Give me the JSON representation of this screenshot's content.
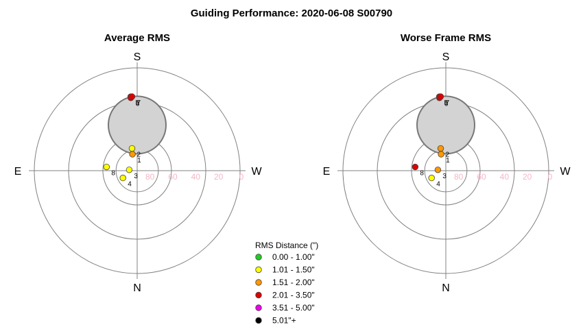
{
  "title": "Guiding Performance: 2020-06-08 S00790",
  "colors": {
    "background": "#ffffff",
    "ring": "#808080",
    "altitude_label": "#f4b6c6",
    "moon_fill": "#d3d3d3",
    "moon_stroke": "#777777",
    "text": "#000000",
    "point_stroke": "#444444"
  },
  "chart_data": [
    {
      "type": "scatter",
      "projection": "polar-sky",
      "title": "Average RMS",
      "directions": {
        "top": "S",
        "bottom": "N",
        "left": "E",
        "right": "W"
      },
      "altitude_ticks": [
        "80",
        "60",
        "40",
        "20",
        "0"
      ],
      "moon": {
        "azimuth_deg": 180,
        "altitude_deg": 50,
        "radius_deg": 12
      },
      "points": [
        {
          "label": "1",
          "azimuth_deg": 164,
          "altitude_deg": 75,
          "rms_class": "1.51 - 2.00\""
        },
        {
          "label": "2",
          "azimuth_deg": 167,
          "altitude_deg": 70,
          "rms_class": "1.01 - 1.50\""
        },
        {
          "label": "3",
          "azimuth_deg": 96,
          "altitude_deg": 83,
          "rms_class": "1.01 - 1.50\""
        },
        {
          "label": "4",
          "azimuth_deg": 63,
          "altitude_deg": 76,
          "rms_class": "1.01 - 1.50\""
        },
        {
          "label": "5",
          "azimuth_deg": 175,
          "altitude_deg": 25,
          "rms_class": "2.01 - 3.50\""
        },
        {
          "label": "6",
          "azimuth_deg": 175,
          "altitude_deg": 26,
          "rms_class": "2.01 - 3.50\""
        },
        {
          "label": "7",
          "azimuth_deg": 176,
          "altitude_deg": 25,
          "rms_class": "2.01 - 3.50\""
        },
        {
          "label": "8",
          "azimuth_deg": 97,
          "altitude_deg": 63,
          "rms_class": "1.01 - 1.50\""
        }
      ]
    },
    {
      "type": "scatter",
      "projection": "polar-sky",
      "title": "Worse Frame RMS",
      "directions": {
        "top": "S",
        "bottom": "N",
        "left": "E",
        "right": "W"
      },
      "altitude_ticks": [
        "80",
        "60",
        "40",
        "20",
        "0"
      ],
      "moon": {
        "azimuth_deg": 180,
        "altitude_deg": 50,
        "radius_deg": 12
      },
      "points": [
        {
          "label": "1",
          "azimuth_deg": 164,
          "altitude_deg": 75,
          "rms_class": "1.51 - 2.00\""
        },
        {
          "label": "2",
          "azimuth_deg": 167,
          "altitude_deg": 70,
          "rms_class": "1.51 - 2.00\""
        },
        {
          "label": "3",
          "azimuth_deg": 96,
          "altitude_deg": 83,
          "rms_class": "1.51 - 2.00\""
        },
        {
          "label": "4",
          "azimuth_deg": 63,
          "altitude_deg": 76,
          "rms_class": "1.01 - 1.50\""
        },
        {
          "label": "5",
          "azimuth_deg": 175,
          "altitude_deg": 25,
          "rms_class": "2.01 - 3.50\""
        },
        {
          "label": "6",
          "azimuth_deg": 175,
          "altitude_deg": 26,
          "rms_class": "2.01 - 3.50\""
        },
        {
          "label": "7",
          "azimuth_deg": 176,
          "altitude_deg": 25,
          "rms_class": "2.01 - 3.50\""
        },
        {
          "label": "8",
          "azimuth_deg": 97,
          "altitude_deg": 63,
          "rms_class": "2.01 - 3.50\""
        }
      ]
    }
  ],
  "legend": {
    "title": "RMS Distance (\")",
    "items": [
      {
        "label": "0.00 - 1.00\"",
        "color": "#22cc22"
      },
      {
        "label": "1.01 - 1.50\"",
        "color": "#ffff00"
      },
      {
        "label": "1.51 - 2.00\"",
        "color": "#ff9900"
      },
      {
        "label": "2.01 - 3.50\"",
        "color": "#dd0000"
      },
      {
        "label": "3.51 - 5.00\"",
        "color": "#ee00ee"
      },
      {
        "label": "5.01\"+",
        "color": "#000000"
      }
    ]
  }
}
